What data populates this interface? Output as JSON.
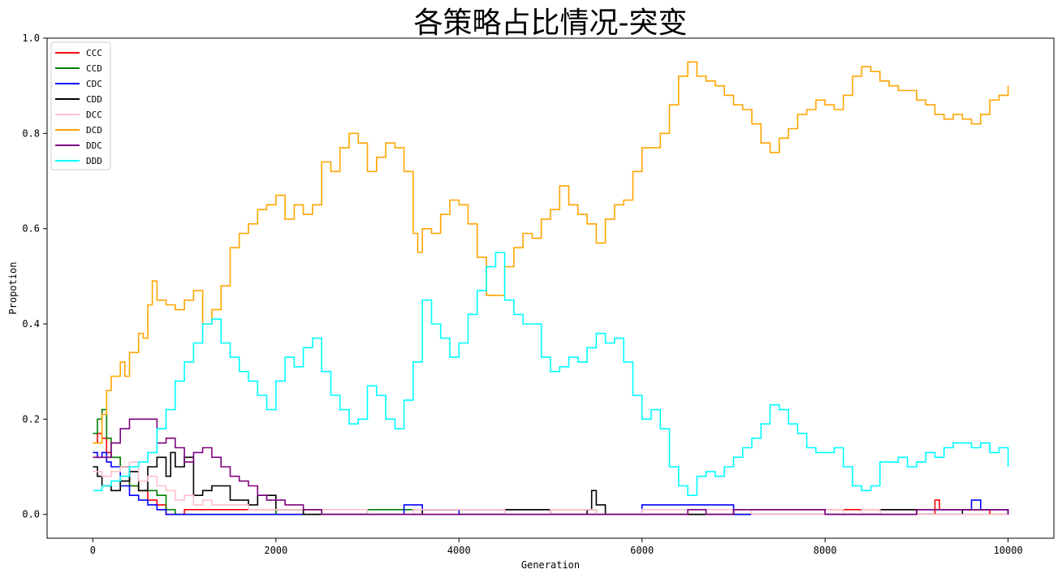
{
  "chart_data": {
    "type": "line",
    "title": "各策略占比情况-突变",
    "xlabel": "Generation",
    "ylabel": "Propotion",
    "xlim": [
      -500,
      10500
    ],
    "ylim": [
      -0.05,
      1.0
    ],
    "xticks": [
      0,
      2000,
      4000,
      6000,
      8000,
      10000
    ],
    "xtick_labels": [
      "0",
      "2000",
      "4000",
      "6000",
      "8000",
      "10000"
    ],
    "yticks": [
      0.0,
      0.2,
      0.4,
      0.6,
      0.8,
      1.0
    ],
    "ytick_labels": [
      "0.0",
      "0.2",
      "0.4",
      "0.6",
      "0.8",
      "1.0"
    ],
    "grid": false,
    "legend_position": "top-left",
    "series": [
      {
        "name": "CCC",
        "color": "#ff0000",
        "x": [
          0,
          50,
          100,
          150,
          200,
          300,
          400,
          500,
          600,
          700,
          800,
          900,
          1000,
          1500,
          2000,
          3000,
          5000,
          7000,
          8000,
          9000,
          9200,
          9250,
          9300,
          9500,
          9700,
          9800,
          10000
        ],
        "y": [
          0.15,
          0.17,
          0.16,
          0.13,
          0.12,
          0.1,
          0.06,
          0.05,
          0.03,
          0.02,
          0.0,
          0.0,
          0.01,
          0.01,
          0.0,
          0.0,
          0.0,
          0.0,
          0.01,
          0.0,
          0.03,
          0.01,
          0.01,
          0.01,
          0.01,
          0.0,
          0.0
        ]
      },
      {
        "name": "CCD",
        "color": "#008000",
        "x": [
          0,
          50,
          100,
          150,
          200,
          300,
          400,
          500,
          600,
          700,
          800,
          900,
          1000,
          1500,
          2000,
          2500,
          3000,
          4000,
          4500,
          5000,
          5500,
          6000,
          7000,
          8000,
          9000,
          10000
        ],
        "y": [
          0.17,
          0.2,
          0.22,
          0.16,
          0.12,
          0.1,
          0.06,
          0.05,
          0.05,
          0.04,
          0.01,
          0.0,
          0.0,
          0.0,
          0.01,
          0.0,
          0.01,
          0.0,
          0.01,
          0.01,
          0.0,
          0.0,
          0.0,
          0.0,
          0.0,
          0.0
        ]
      },
      {
        "name": "CDC",
        "color": "#0000ff",
        "x": [
          0,
          50,
          100,
          150,
          200,
          300,
          400,
          500,
          600,
          700,
          800,
          1000,
          1500,
          2000,
          3000,
          3300,
          3400,
          3600,
          4000,
          5000,
          5800,
          6000,
          7000,
          8000,
          9000,
          9500,
          9600,
          9700,
          10000
        ],
        "y": [
          0.13,
          0.12,
          0.13,
          0.11,
          0.1,
          0.06,
          0.04,
          0.03,
          0.02,
          0.01,
          0.0,
          0.0,
          0.0,
          0.0,
          0.0,
          0.0,
          0.02,
          0.01,
          0.0,
          0.0,
          0.0,
          0.02,
          0.0,
          0.0,
          0.01,
          0.01,
          0.03,
          0.01,
          0.0
        ]
      },
      {
        "name": "CDD",
        "color": "#000000",
        "x": [
          0,
          50,
          100,
          200,
          300,
          400,
          500,
          600,
          700,
          800,
          850,
          900,
          1000,
          1100,
          1200,
          1300,
          1500,
          1700,
          1800,
          2000,
          2300,
          3000,
          3600,
          4000,
          5000,
          5400,
          5450,
          5500,
          5600,
          6000,
          7000,
          8000,
          8600,
          9000,
          9500,
          9700,
          10000
        ],
        "y": [
          0.1,
          0.08,
          0.06,
          0.05,
          0.07,
          0.09,
          0.05,
          0.1,
          0.12,
          0.08,
          0.13,
          0.1,
          0.12,
          0.04,
          0.05,
          0.06,
          0.03,
          0.02,
          0.04,
          0.01,
          0.0,
          0.0,
          0.01,
          0.01,
          0.0,
          0.01,
          0.05,
          0.02,
          0.0,
          0.0,
          0.01,
          0.0,
          0.01,
          0.0,
          0.01,
          0.01,
          0.0
        ]
      },
      {
        "name": "DCC",
        "color": "#ffc0cb",
        "x": [
          0,
          100,
          200,
          300,
          400,
          500,
          600,
          700,
          800,
          900,
          1000,
          1100,
          1200,
          1300,
          1500,
          1700,
          2000,
          2500,
          3000,
          3500,
          4000,
          4500,
          5000,
          5500,
          6000,
          7000,
          7200,
          8000,
          8200,
          8400,
          8600,
          9000,
          10000
        ],
        "y": [
          0.09,
          0.08,
          0.09,
          0.1,
          0.11,
          0.07,
          0.08,
          0.06,
          0.05,
          0.03,
          0.04,
          0.02,
          0.03,
          0.02,
          0.02,
          0.01,
          0.01,
          0.01,
          0.0,
          0.01,
          0.01,
          0.0,
          0.01,
          0.0,
          0.01,
          0.01,
          0.0,
          0.01,
          0.0,
          0.01,
          0.0,
          0.0,
          0.0
        ]
      },
      {
        "name": "DCD",
        "color": "#ffa500",
        "x": [
          0,
          100,
          150,
          200,
          300,
          350,
          400,
          500,
          550,
          600,
          650,
          700,
          800,
          900,
          1000,
          1100,
          1200,
          1300,
          1400,
          1500,
          1600,
          1700,
          1800,
          1900,
          2000,
          2100,
          2200,
          2300,
          2400,
          2500,
          2600,
          2700,
          2800,
          2900,
          3000,
          3100,
          3200,
          3300,
          3400,
          3500,
          3550,
          3600,
          3700,
          3800,
          3900,
          4000,
          4100,
          4200,
          4300,
          4400,
          4500,
          4600,
          4700,
          4800,
          4900,
          5000,
          5100,
          5200,
          5300,
          5400,
          5500,
          5600,
          5700,
          5800,
          5900,
          6000,
          6100,
          6200,
          6300,
          6400,
          6500,
          6600,
          6700,
          6800,
          6900,
          7000,
          7100,
          7200,
          7300,
          7400,
          7500,
          7600,
          7700,
          7800,
          7900,
          8000,
          8100,
          8200,
          8300,
          8400,
          8500,
          8600,
          8700,
          8800,
          8900,
          9000,
          9100,
          9200,
          9300,
          9400,
          9500,
          9600,
          9700,
          9800,
          9900,
          10000
        ],
        "y": [
          0.15,
          0.21,
          0.26,
          0.29,
          0.32,
          0.29,
          0.34,
          0.38,
          0.37,
          0.44,
          0.49,
          0.45,
          0.44,
          0.43,
          0.45,
          0.47,
          0.4,
          0.43,
          0.48,
          0.56,
          0.59,
          0.61,
          0.64,
          0.65,
          0.67,
          0.62,
          0.65,
          0.63,
          0.65,
          0.74,
          0.72,
          0.77,
          0.8,
          0.78,
          0.72,
          0.75,
          0.78,
          0.77,
          0.72,
          0.59,
          0.55,
          0.6,
          0.59,
          0.63,
          0.66,
          0.65,
          0.61,
          0.54,
          0.46,
          0.46,
          0.52,
          0.56,
          0.59,
          0.58,
          0.62,
          0.64,
          0.69,
          0.65,
          0.63,
          0.61,
          0.57,
          0.62,
          0.65,
          0.66,
          0.72,
          0.77,
          0.77,
          0.8,
          0.86,
          0.92,
          0.95,
          0.92,
          0.91,
          0.9,
          0.88,
          0.86,
          0.85,
          0.82,
          0.78,
          0.76,
          0.79,
          0.81,
          0.84,
          0.85,
          0.87,
          0.86,
          0.85,
          0.88,
          0.92,
          0.94,
          0.93,
          0.91,
          0.9,
          0.89,
          0.89,
          0.87,
          0.86,
          0.84,
          0.83,
          0.84,
          0.83,
          0.82,
          0.84,
          0.87,
          0.88,
          0.9
        ]
      },
      {
        "name": "DDC",
        "color": "#800080",
        "x": [
          0,
          100,
          200,
          300,
          400,
          500,
          600,
          700,
          800,
          900,
          1000,
          1100,
          1200,
          1300,
          1400,
          1500,
          1600,
          1700,
          1800,
          1900,
          2000,
          2100,
          2200,
          2300,
          2500,
          3000,
          5000,
          6000,
          6500,
          6700,
          7000,
          8000,
          9000,
          9500,
          10000
        ],
        "y": [
          0.12,
          0.12,
          0.15,
          0.18,
          0.2,
          0.2,
          0.2,
          0.15,
          0.16,
          0.14,
          0.11,
          0.13,
          0.14,
          0.12,
          0.1,
          0.08,
          0.07,
          0.06,
          0.04,
          0.03,
          0.03,
          0.02,
          0.02,
          0.01,
          0.0,
          0.0,
          0.0,
          0.0,
          0.01,
          0.0,
          0.01,
          0.0,
          0.01,
          0.01,
          0.0
        ]
      },
      {
        "name": "DDD",
        "color": "#00ffff",
        "x": [
          0,
          100,
          200,
          300,
          400,
          500,
          600,
          700,
          800,
          900,
          1000,
          1100,
          1200,
          1300,
          1400,
          1500,
          1600,
          1700,
          1800,
          1900,
          2000,
          2100,
          2200,
          2300,
          2400,
          2500,
          2600,
          2700,
          2800,
          2900,
          3000,
          3100,
          3200,
          3300,
          3400,
          3500,
          3600,
          3700,
          3800,
          3900,
          4000,
          4100,
          4200,
          4300,
          4400,
          4500,
          4600,
          4700,
          4800,
          4900,
          5000,
          5100,
          5200,
          5300,
          5400,
          5500,
          5600,
          5700,
          5800,
          5900,
          6000,
          6100,
          6200,
          6300,
          6400,
          6500,
          6600,
          6700,
          6800,
          6900,
          7000,
          7100,
          7200,
          7300,
          7400,
          7500,
          7600,
          7700,
          7800,
          7900,
          8000,
          8100,
          8200,
          8300,
          8400,
          8500,
          8600,
          8700,
          8800,
          8900,
          9000,
          9100,
          9200,
          9300,
          9400,
          9500,
          9600,
          9700,
          9800,
          9900,
          10000
        ],
        "y": [
          0.05,
          0.06,
          0.07,
          0.08,
          0.1,
          0.11,
          0.13,
          0.18,
          0.22,
          0.28,
          0.32,
          0.36,
          0.4,
          0.41,
          0.36,
          0.33,
          0.3,
          0.28,
          0.25,
          0.22,
          0.28,
          0.33,
          0.31,
          0.35,
          0.37,
          0.3,
          0.25,
          0.22,
          0.19,
          0.2,
          0.27,
          0.25,
          0.2,
          0.18,
          0.24,
          0.32,
          0.45,
          0.4,
          0.37,
          0.33,
          0.36,
          0.42,
          0.47,
          0.52,
          0.55,
          0.45,
          0.42,
          0.4,
          0.4,
          0.33,
          0.3,
          0.31,
          0.33,
          0.32,
          0.35,
          0.38,
          0.36,
          0.37,
          0.32,
          0.25,
          0.2,
          0.22,
          0.18,
          0.1,
          0.06,
          0.04,
          0.08,
          0.09,
          0.08,
          0.1,
          0.12,
          0.14,
          0.16,
          0.19,
          0.23,
          0.22,
          0.19,
          0.17,
          0.14,
          0.13,
          0.13,
          0.14,
          0.1,
          0.06,
          0.05,
          0.06,
          0.11,
          0.11,
          0.12,
          0.1,
          0.11,
          0.13,
          0.12,
          0.14,
          0.15,
          0.15,
          0.14,
          0.15,
          0.13,
          0.14,
          0.1
        ]
      }
    ]
  }
}
